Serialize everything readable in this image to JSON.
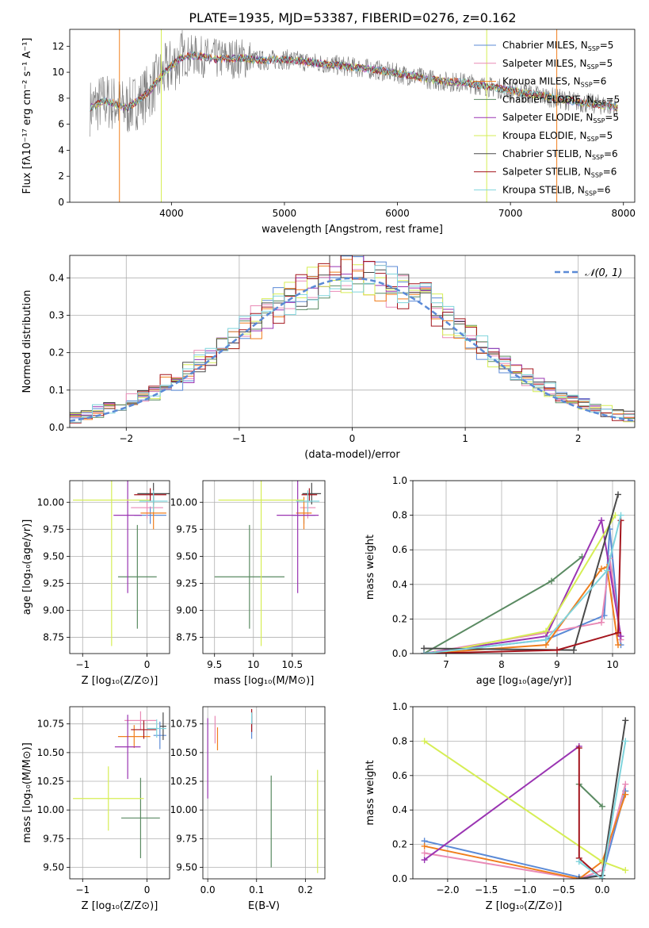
{
  "figure_title": "PLATE=1935, MJD=53387, FIBERID=0276, z=0.162",
  "colors": [
    "#5b8ad6",
    "#e98ab6",
    "#f07f1e",
    "#5a8a62",
    "#9a34b2",
    "#d6ee55",
    "#4a4a4a",
    "#a4151d",
    "#7fd4dc"
  ],
  "legend_entries": [
    {
      "text": "Chabrier MILES, N",
      "sub": "SSP",
      "tail": "=5",
      "color": "#5b8ad6"
    },
    {
      "text": "Salpeter MILES, N",
      "sub": "SSP",
      "tail": "=5",
      "color": "#e98ab6"
    },
    {
      "text": "Kroupa MILES, N",
      "sub": "SSP",
      "tail": "=6",
      "color": "#f07f1e"
    },
    {
      "text": "Chabrier ELODIE, N",
      "sub": "SSP",
      "tail": "=5",
      "color": "#5a8a62"
    },
    {
      "text": "Salpeter ELODIE, N",
      "sub": "SSP",
      "tail": "=5",
      "color": "#9a34b2"
    },
    {
      "text": "Kroupa ELODIE, N",
      "sub": "SSP",
      "tail": "=5",
      "color": "#d6ee55"
    },
    {
      "text": "Chabrier STELIB, N",
      "sub": "SSP",
      "tail": "=6",
      "color": "#4a4a4a"
    },
    {
      "text": "Salpeter STELIB, N",
      "sub": "SSP",
      "tail": "=6",
      "color": "#a4151d"
    },
    {
      "text": "Kroupa STELIB, N",
      "sub": "SSP",
      "tail": "=6",
      "color": "#7fd4dc"
    }
  ],
  "chart_data": [
    {
      "id": "spectrum",
      "type": "line",
      "xlabel": "wavelength [Angstrom, rest frame]",
      "ylabel": "Flux [fλ10⁻¹⁷ erg cm⁻² s⁻¹ A⁻¹]",
      "xlim": [
        3100,
        8100
      ],
      "ylim": [
        0,
        13.3
      ],
      "xticks": [
        4000,
        5000,
        6000,
        7000,
        8000
      ],
      "yticks": [
        0,
        2,
        4,
        6,
        8,
        10,
        12
      ],
      "series_profile": {
        "x": [
          3300,
          3400,
          3500,
          3600,
          3700,
          3800,
          3900,
          4000,
          4100,
          4200,
          4400,
          4600,
          4800,
          5000,
          5200,
          5400,
          5600,
          5800,
          6000,
          6200,
          6400,
          6600,
          6800,
          7000,
          7200,
          7400,
          7600,
          7800,
          7950
        ],
        "y": [
          7.3,
          7.8,
          7.6,
          7.2,
          7.8,
          8.5,
          9.6,
          10.5,
          11.2,
          11.3,
          11.0,
          11.1,
          10.9,
          11.0,
          10.8,
          10.6,
          10.4,
          10.2,
          9.9,
          9.6,
          9.3,
          9.2,
          8.9,
          8.6,
          8.3,
          8.0,
          7.7,
          7.5,
          7.3
        ]
      }
    },
    {
      "id": "residuals",
      "type": "histogram",
      "xlabel": "(data-model)/error",
      "ylabel": "Normed distribution",
      "xlim": [
        -2.5,
        2.5
      ],
      "ylim": [
        0,
        0.46
      ],
      "xticks": [
        -2,
        -1,
        0,
        1,
        2
      ],
      "yticks": [
        0,
        0.1,
        0.2,
        0.3,
        0.4
      ],
      "reference_curve": {
        "label": "𝒩(0, 1)",
        "mu": 0,
        "sigma": 1,
        "color": "#5b8ad6"
      }
    },
    {
      "id": "age_vs_Z",
      "type": "scatter",
      "xlabel": "Z [log₁₀(Z/Z⊙)]",
      "ylabel": "age  [log₁₀(age/yr)]",
      "xlim": [
        -1.2,
        0.35
      ],
      "ylim": [
        8.6,
        10.2
      ],
      "xticks": [
        -1,
        0
      ],
      "yticks": [
        8.75,
        9.0,
        9.25,
        9.5,
        9.75,
        10.0
      ],
      "points": [
        {
          "x": 0.05,
          "y": 9.88,
          "xerr": 0.25,
          "yerr": 0.08
        },
        {
          "x": 0.0,
          "y": 9.95,
          "xerr": 0.25,
          "yerr": 0.1
        },
        {
          "x": 0.1,
          "y": 9.9,
          "xerr": 0.2,
          "yerr": 0.15
        },
        {
          "x": -0.15,
          "y": 9.31,
          "xerr": 0.3,
          "yerr": 0.48
        },
        {
          "x": -0.3,
          "y": 9.88,
          "xerr": 0.22,
          "yerr": 0.72
        },
        {
          "x": -0.55,
          "y": 10.02,
          "xerr": 0.6,
          "yerr": 1.35
        },
        {
          "x": 0.1,
          "y": 10.08,
          "xerr": 0.25,
          "yerr": 0.1
        },
        {
          "x": 0.05,
          "y": 10.07,
          "xerr": 0.25,
          "yerr": 0.06
        },
        {
          "x": 0.1,
          "y": 10.01,
          "xerr": 0.22,
          "yerr": 0.1
        }
      ]
    },
    {
      "id": "age_vs_mass",
      "type": "scatter",
      "xlabel": "mass [log₁₀(M/M⊙)]",
      "ylabel": "",
      "xlim": [
        9.35,
        10.92
      ],
      "ylim": [
        8.6,
        10.2
      ],
      "xticks": [
        9.5,
        10.0,
        10.5
      ],
      "yticks": [
        8.75,
        9.0,
        9.25,
        9.5,
        9.75,
        10.0
      ],
      "points": [
        {
          "x": 10.65,
          "y": 9.88,
          "xerr": 0.15,
          "yerr": 0.08
        },
        {
          "x": 10.7,
          "y": 9.95,
          "xerr": 0.1,
          "yerr": 0.1
        },
        {
          "x": 10.65,
          "y": 9.9,
          "xerr": 0.1,
          "yerr": 0.15
        },
        {
          "x": 9.95,
          "y": 9.31,
          "xerr": 0.45,
          "yerr": 0.48
        },
        {
          "x": 10.57,
          "y": 9.88,
          "xerr": 0.27,
          "yerr": 0.72
        },
        {
          "x": 10.1,
          "y": 10.02,
          "xerr": 0.55,
          "yerr": 1.35
        },
        {
          "x": 10.75,
          "y": 10.08,
          "xerr": 0.12,
          "yerr": 0.1
        },
        {
          "x": 10.72,
          "y": 10.07,
          "xerr": 0.1,
          "yerr": 0.06
        },
        {
          "x": 10.7,
          "y": 10.01,
          "xerr": 0.15,
          "yerr": 0.1
        }
      ]
    },
    {
      "id": "mass_weight_vs_age",
      "type": "line",
      "xlabel": "age  [log₁₀(age/yr)]",
      "ylabel": "mass weight",
      "xlim": [
        6.4,
        10.4
      ],
      "ylim": [
        0,
        1.0
      ],
      "xticks": [
        7,
        8,
        9,
        10
      ],
      "yticks": [
        0.0,
        0.2,
        0.4,
        0.6,
        0.8,
        1.0
      ],
      "series": [
        {
          "x": [
            6.6,
            8.8,
            9.85,
            9.95,
            10.15
          ],
          "y": [
            0.0,
            0.08,
            0.22,
            0.72,
            0.05
          ]
        },
        {
          "x": [
            6.6,
            8.8,
            9.8,
            9.95,
            10.15
          ],
          "y": [
            0.0,
            0.12,
            0.18,
            0.55,
            0.08
          ]
        },
        {
          "x": [
            6.6,
            8.8,
            9.8,
            9.9,
            10.1
          ],
          "y": [
            0.0,
            0.05,
            0.49,
            0.5,
            0.05
          ]
        },
        {
          "x": [
            6.6,
            8.9,
            9.45
          ],
          "y": [
            0.0,
            0.42,
            0.56
          ]
        },
        {
          "x": [
            6.6,
            8.8,
            9.8,
            10.15
          ],
          "y": [
            0.0,
            0.1,
            0.77,
            0.1
          ]
        },
        {
          "x": [
            6.8,
            8.8,
            10.05
          ],
          "y": [
            0.0,
            0.13,
            0.8
          ]
        },
        {
          "x": [
            6.6,
            9.3,
            10.1
          ],
          "y": [
            0.03,
            0.02,
            0.92
          ]
        },
        {
          "x": [
            6.6,
            9.0,
            10.1,
            10.15
          ],
          "y": [
            0.0,
            0.02,
            0.12,
            0.77
          ]
        },
        {
          "x": [
            6.6,
            8.8,
            9.9,
            10.15
          ],
          "y": [
            0.0,
            0.08,
            0.48,
            0.8
          ]
        }
      ]
    },
    {
      "id": "mass_vs_Z",
      "type": "scatter",
      "xlabel": "Z [log₁₀(Z/Z⊙)]",
      "ylabel": "mass [log₁₀(M/M⊙)]",
      "xlim": [
        -1.2,
        0.35
      ],
      "ylim": [
        9.4,
        10.9
      ],
      "xticks": [
        -1,
        0
      ],
      "yticks": [
        9.5,
        9.75,
        10.0,
        10.25,
        10.5,
        10.75
      ],
      "points": [
        {
          "x": 0.2,
          "y": 10.65,
          "xerr": 0.1,
          "yerr": 0.12
        },
        {
          "x": -0.1,
          "y": 10.78,
          "xerr": 0.25,
          "yerr": 0.08
        },
        {
          "x": -0.2,
          "y": 10.64,
          "xerr": 0.25,
          "yerr": 0.1
        },
        {
          "x": -0.1,
          "y": 9.93,
          "xerr": 0.3,
          "yerr": 0.35
        },
        {
          "x": -0.3,
          "y": 10.55,
          "xerr": 0.2,
          "yerr": 0.28
        },
        {
          "x": -0.6,
          "y": 10.1,
          "xerr": 0.55,
          "yerr": 0.28
        },
        {
          "x": 0.25,
          "y": 10.73,
          "xerr": 0.05,
          "yerr": 0.12
        },
        {
          "x": -0.05,
          "y": 10.7,
          "xerr": 0.2,
          "yerr": 0.08
        },
        {
          "x": 0.15,
          "y": 10.71,
          "xerr": 0.15,
          "yerr": 0.08
        }
      ]
    },
    {
      "id": "mass_vs_ebv",
      "type": "scatter",
      "xlabel": "E(B-V)",
      "ylabel": "",
      "xlim": [
        -0.01,
        0.24
      ],
      "ylim": [
        9.4,
        10.9
      ],
      "xticks": [
        0.0,
        0.1,
        0.2
      ],
      "yticks": [
        9.5,
        9.75,
        10.0,
        10.25,
        10.5,
        10.75
      ],
      "points": [
        {
          "x": 0.09,
          "y": 10.72,
          "xerr": 0,
          "yerr": 0.1
        },
        {
          "x": 0.015,
          "y": 10.7,
          "xerr": 0,
          "yerr": 0.12
        },
        {
          "x": 0.02,
          "y": 10.62,
          "xerr": 0,
          "yerr": 0.1
        },
        {
          "x": 0.13,
          "y": 9.9,
          "xerr": 0,
          "yerr": 0.4
        },
        {
          "x": 0.0,
          "y": 10.45,
          "xerr": 0,
          "yerr": 0.35
        },
        {
          "x": 0.225,
          "y": 9.9,
          "xerr": 0,
          "yerr": 0.45
        },
        {
          "x": 0.09,
          "y": 10.8,
          "xerr": 0,
          "yerr": 0.05
        },
        {
          "x": 0.09,
          "y": 10.78,
          "xerr": 0,
          "yerr": 0.1
        },
        {
          "x": 0.09,
          "y": 10.8,
          "xerr": 0,
          "yerr": 0.05
        }
      ]
    },
    {
      "id": "mass_weight_vs_Z",
      "type": "line",
      "xlabel": "Z [log₁₀(Z/Z⊙)]",
      "ylabel": "mass weight",
      "xlim": [
        -2.45,
        0.42
      ],
      "ylim": [
        0,
        1.0
      ],
      "xticks": [
        -2.0,
        -1.5,
        -1.0,
        -0.5,
        0.0
      ],
      "yticks": [
        0.0,
        0.2,
        0.4,
        0.6,
        0.8,
        1.0
      ],
      "series": [
        {
          "x": [
            -2.3,
            -0.3,
            0.0,
            0.3
          ],
          "y": [
            0.22,
            0.01,
            0.02,
            0.51
          ]
        },
        {
          "x": [
            -2.3,
            -0.3,
            0.0,
            0.3
          ],
          "y": [
            0.15,
            0.0,
            0.05,
            0.55
          ]
        },
        {
          "x": [
            -2.3,
            -0.3,
            0.0,
            0.3
          ],
          "y": [
            0.19,
            0.0,
            0.1,
            0.49
          ]
        },
        {
          "x": [
            -0.3,
            0.0
          ],
          "y": [
            0.55,
            0.42
          ]
        },
        {
          "x": [
            -2.3,
            -0.3
          ],
          "y": [
            0.11,
            0.77
          ]
        },
        {
          "x": [
            -2.3,
            0.0,
            0.3
          ],
          "y": [
            0.8,
            0.1,
            0.05
          ]
        },
        {
          "x": [
            -0.3,
            0.0,
            0.3
          ],
          "y": [
            0.0,
            0.02,
            0.92
          ]
        },
        {
          "x": [
            -0.3,
            -0.3,
            0.0
          ],
          "y": [
            0.76,
            0.12,
            0.0
          ]
        },
        {
          "x": [
            -0.3,
            0.0,
            0.3
          ],
          "y": [
            0.1,
            0.0,
            0.8
          ]
        }
      ]
    }
  ]
}
